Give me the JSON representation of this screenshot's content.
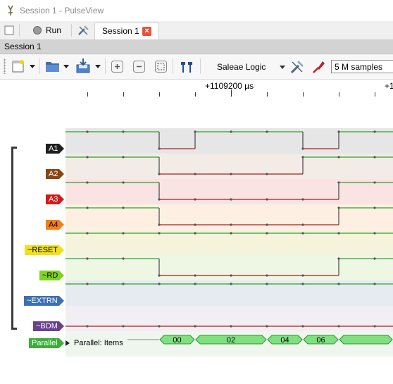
{
  "window": {
    "title": "Session 1 - PulseView"
  },
  "tabbar": {
    "run_label": "Run",
    "session_tab_label": "Session 1",
    "close_glyph": "×"
  },
  "session_bar": {
    "label": "Session 1"
  },
  "toolbar": {
    "device": "Saleae Logic",
    "samples": "5 M samples",
    "icons": [
      "new-session-icon",
      "open-file-icon",
      "save-icon",
      "zoom-in-icon",
      "zoom-out-icon",
      "zoom-fit-icon",
      "cursor-icon",
      "configure-device-icon",
      "probe-icon"
    ]
  },
  "ruler": {
    "center_label": "+1109200 µs",
    "right_label": "+1"
  },
  "channels": [
    {
      "name": "A1",
      "color": "#1f1f1f",
      "text_color": "#ffffff",
      "bg": "#e6e6e6"
    },
    {
      "name": "A2",
      "color": "#8b4513",
      "text_color": "#ffffff",
      "bg": "#f3ece6"
    },
    {
      "name": "A3",
      "color": "#d21b1b",
      "text_color": "#ffffff",
      "bg": "#f9e3e3"
    },
    {
      "name": "A4",
      "color": "#f57f11",
      "text_color": "#000000",
      "bg": "#fdf0e3"
    },
    {
      "name": "~RESET",
      "color": "#f0e020",
      "text_color": "#000000",
      "bg": "#f5f3dc"
    },
    {
      "name": "~RD",
      "color": "#7ed321",
      "text_color": "#000000",
      "bg": "#eef6e4"
    },
    {
      "name": "~EXTRN",
      "color": "#3d6fb7",
      "text_color": "#ffffff",
      "bg": "#e6ebf2"
    },
    {
      "name": "~BDM",
      "color": "#6b3f8f",
      "text_color": "#ffffff",
      "bg": "#f1eef4"
    }
  ],
  "decoder": {
    "tag": "Parallel",
    "tag_color": "#3cae3c",
    "row_label": "Parallel: Items",
    "items": [
      "00",
      "02",
      "04",
      "06"
    ]
  }
}
